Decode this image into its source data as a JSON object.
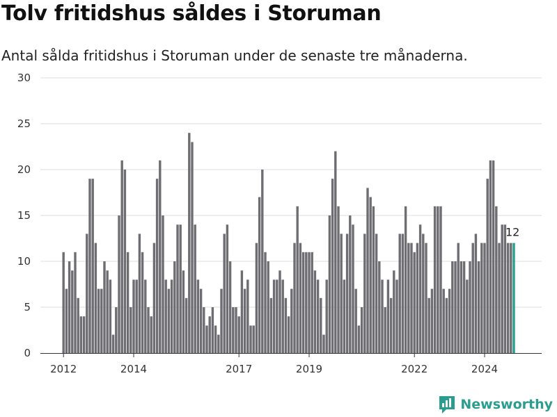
{
  "title": "Tolv fritidshus såldes i Storuman",
  "subtitle": "Antal sålda fritidshus i Storuman under de senaste tre månaderna.",
  "brand": "Newsworthy",
  "colors": {
    "bar": "#6e6d72",
    "highlight": "#2a9d8f",
    "grid": "#dddddd",
    "axis": "#333333"
  },
  "chart_data": {
    "type": "bar",
    "title": "Tolv fritidshus såldes i Storuman",
    "subtitle": "Antal sålda fritidshus i Storuman under de senaste tre månaderna.",
    "xlabel": "",
    "ylabel": "",
    "ylim": [
      0,
      30
    ],
    "yticks": [
      0,
      5,
      10,
      15,
      20,
      25,
      30
    ],
    "x_start": "2012-01",
    "x_step": "month",
    "xticks": [
      {
        "label": "2012",
        "date": "2012-01"
      },
      {
        "label": "2014",
        "date": "2014-01"
      },
      {
        "label": "2017",
        "date": "2017-01"
      },
      {
        "label": "2019",
        "date": "2019-01"
      },
      {
        "label": "2022",
        "date": "2022-01"
      },
      {
        "label": "2024",
        "date": "2024-01"
      }
    ],
    "grid": true,
    "values": [
      11,
      7,
      10,
      9,
      11,
      6,
      4,
      4,
      13,
      19,
      19,
      12,
      7,
      7,
      10,
      9,
      8,
      2,
      5,
      15,
      21,
      20,
      11,
      5,
      8,
      8,
      13,
      11,
      8,
      5,
      4,
      12,
      19,
      21,
      15,
      8,
      7,
      8,
      10,
      14,
      14,
      9,
      6,
      24,
      23,
      14,
      8,
      7,
      5,
      3,
      4,
      5,
      3,
      2,
      7,
      13,
      14,
      10,
      5,
      5,
      4,
      9,
      7,
      8,
      3,
      3,
      12,
      17,
      20,
      11,
      10,
      6,
      8,
      8,
      9,
      8,
      6,
      4,
      7,
      12,
      16,
      12,
      11,
      11,
      11,
      11,
      9,
      8,
      6,
      2,
      8,
      15,
      19,
      22,
      16,
      13,
      8,
      13,
      15,
      14,
      7,
      3,
      5,
      13,
      18,
      17,
      16,
      13,
      10,
      8,
      5,
      8,
      6,
      9,
      8,
      13,
      13,
      16,
      12,
      12,
      11,
      12,
      14,
      13,
      12,
      6,
      7,
      16,
      16,
      16,
      7,
      6,
      7,
      10,
      10,
      12,
      10,
      10,
      8,
      10,
      12,
      13,
      10,
      12,
      12,
      19,
      21,
      21,
      16,
      12,
      14,
      14,
      12,
      12,
      12
    ],
    "highlight_last": true,
    "annotations": [
      {
        "text": "12",
        "target": "last"
      }
    ]
  }
}
